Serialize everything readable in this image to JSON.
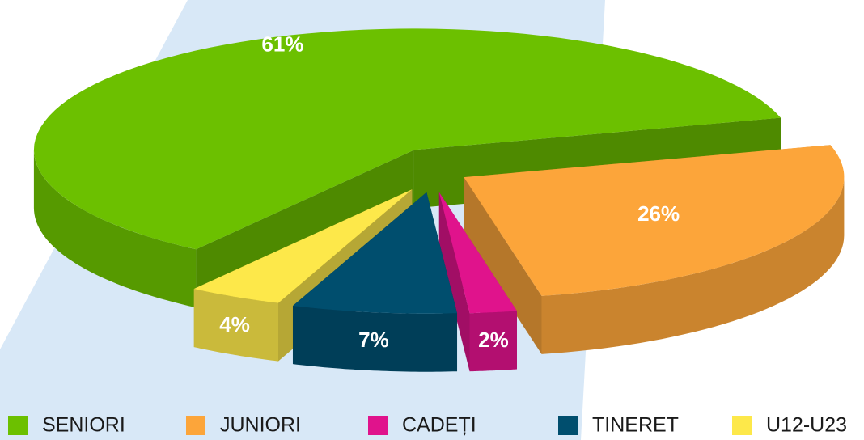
{
  "chart_data": {
    "type": "pie",
    "categories": [
      "SENIORI",
      "JUNIORI",
      "CADEȚI",
      "TINERET",
      "U12-U23"
    ],
    "values": [
      61,
      26,
      2,
      7,
      4
    ],
    "value_labels": [
      "61%",
      "26%",
      "2%",
      "7%",
      "4%"
    ],
    "colors": [
      "#6cc000",
      "#fca53a",
      "#e0138c",
      "#004e6e",
      "#fde84a"
    ],
    "legend": "bottom"
  }
}
